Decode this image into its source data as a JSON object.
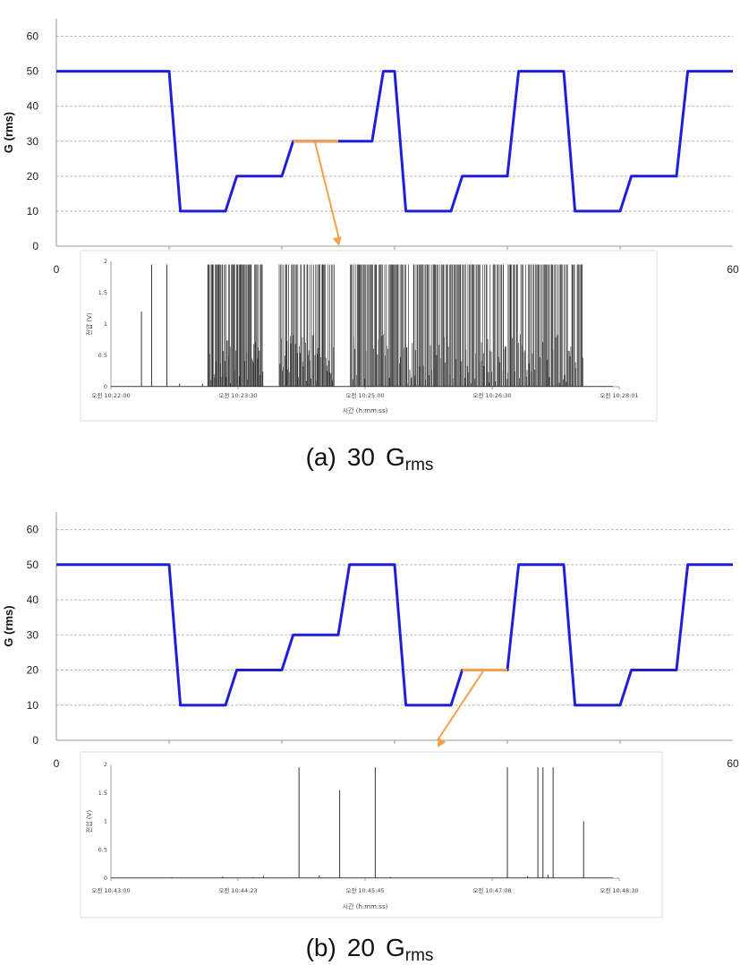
{
  "panels": [
    {
      "caption": {
        "prefix": "(a)",
        "value": "30",
        "base": "G",
        "sub": "rms"
      },
      "top_chart": {
        "type": "line",
        "ylabel": "G (rms)",
        "ylim": [
          0,
          65
        ],
        "yticks": [
          0,
          10,
          20,
          30,
          40,
          50,
          60
        ],
        "xlim": [
          0,
          60
        ],
        "xtick_labels": [
          "0",
          "60"
        ],
        "grid": true,
        "line_color": "#1f1fdb",
        "highlight_color": "#f5a04a",
        "series": [
          {
            "x": [
              0,
              10,
              11,
              15,
              16,
              20,
              21,
              25,
              25.5,
              26,
              26.5,
              28,
              29,
              30,
              31,
              35,
              36,
              40,
              41,
              45,
              46,
              50,
              51,
              55,
              56,
              60
            ],
            "y": [
              50,
              50,
              10,
              10,
              20,
              20,
              30,
              30,
              30,
              30,
              30,
              30,
              50,
              50,
              10,
              10,
              20,
              20,
              50,
              50,
              10,
              10,
              20,
              20,
              50,
              50
            ]
          }
        ],
        "highlight": {
          "x": [
            21,
            25
          ],
          "y": 30
        }
      },
      "sub_chart": {
        "type": "line",
        "ylabel": "전압 (V)",
        "xlabel": "시간 (h:mm:ss)",
        "ylim": [
          0,
          2
        ],
        "yticks": [
          "0",
          "0.5",
          "1",
          "1.5",
          "2"
        ],
        "xtick_labels": [
          "오전 10:22:00",
          "오전 10:23:30",
          "오전 10:25:00",
          "오전 10:26:30",
          "오전 10:28:01"
        ],
        "line_color": "#333333",
        "spikes": [
          [
            0.06,
            1.2
          ],
          [
            0.08,
            1.95
          ],
          [
            0.11,
            1.95
          ],
          [
            0.135,
            0.05
          ],
          [
            0.18,
            0.05
          ]
        ],
        "dense_regions": [
          [
            0.19,
            0.3,
            90,
            0.6
          ],
          [
            0.33,
            0.44,
            80,
            0.4
          ],
          [
            0.47,
            0.93,
            300,
            0.7
          ]
        ]
      }
    },
    {
      "caption": {
        "prefix": "(b)",
        "value": "20",
        "base": "G",
        "sub": "rms"
      },
      "top_chart": {
        "type": "line",
        "ylabel": "G (rms)",
        "ylim": [
          0,
          65
        ],
        "yticks": [
          0,
          10,
          20,
          30,
          40,
          50,
          60
        ],
        "xlim": [
          0,
          60
        ],
        "xtick_labels": [
          "0",
          "60"
        ],
        "grid": true,
        "line_color": "#1f1fdb",
        "highlight_color": "#f5a04a",
        "series": [
          {
            "x": [
              0,
              10,
              11,
              15,
              16,
              20,
              21,
              25,
              26,
              30,
              31,
              35,
              36,
              40,
              41,
              45,
              46,
              50,
              51,
              55,
              56,
              60
            ],
            "y": [
              50,
              50,
              10,
              10,
              20,
              20,
              30,
              30,
              50,
              50,
              10,
              10,
              20,
              20,
              50,
              50,
              10,
              10,
              20,
              20,
              50,
              50
            ]
          }
        ],
        "highlight": {
          "x": [
            36,
            40
          ],
          "y": 20
        }
      },
      "sub_chart": {
        "type": "line",
        "ylabel": "전압 (V)",
        "xlabel": "시간 (h:mm:ss)",
        "ylim": [
          0,
          2
        ],
        "yticks": [
          "0",
          "0.5",
          "1",
          "1.5",
          "2"
        ],
        "xtick_labels": [
          "오전 10:43:00",
          "오전 10:44:23",
          "오전 10:45:45",
          "오전 10:47:08",
          "오전 10:48:30"
        ],
        "line_color": "#333333",
        "spikes": [
          [
            0.12,
            0.02
          ],
          [
            0.22,
            0.03
          ],
          [
            0.28,
            0.02
          ],
          [
            0.3,
            0.04
          ],
          [
            0.37,
            1.95
          ],
          [
            0.45,
            1.55
          ],
          [
            0.52,
            1.95
          ],
          [
            0.78,
            1.95
          ],
          [
            0.84,
            1.95
          ],
          [
            0.85,
            1.95
          ],
          [
            0.87,
            1.95
          ],
          [
            0.93,
            1.0
          ],
          [
            0.41,
            0.05
          ],
          [
            0.55,
            0.02
          ],
          [
            0.82,
            0.04
          ],
          [
            0.86,
            0.06
          ]
        ]
      }
    }
  ]
}
